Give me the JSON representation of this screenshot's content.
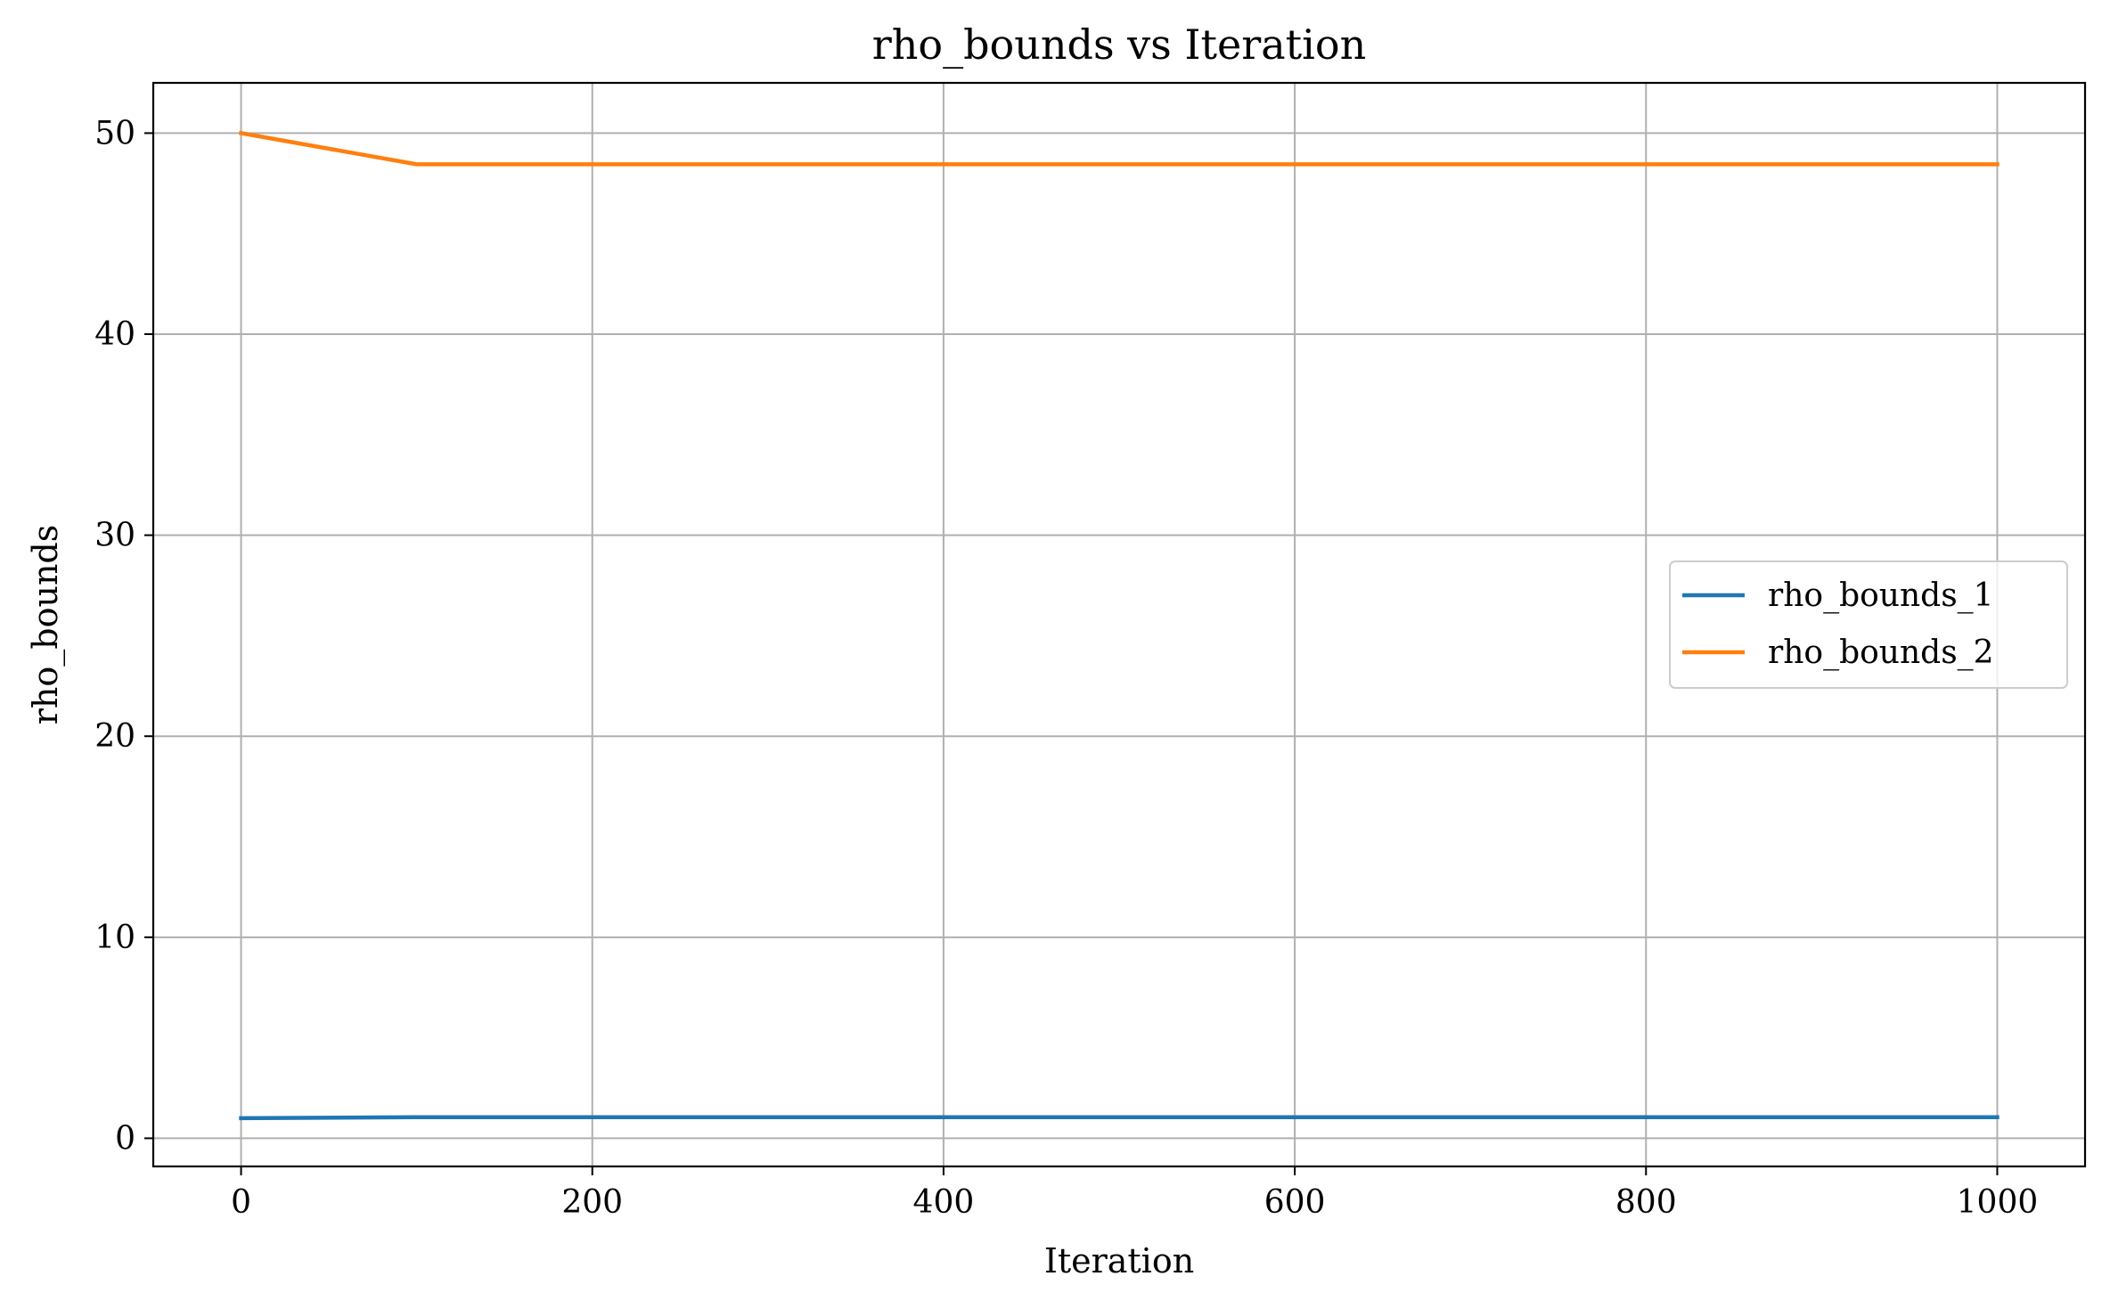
{
  "chart_data": {
    "type": "line",
    "title": "rho_bounds vs Iteration",
    "xlabel": "Iteration",
    "ylabel": "rho_bounds",
    "xlim": [
      -50,
      1050
    ],
    "ylim": [
      -1.4,
      52.5
    ],
    "x_ticks": [
      0,
      200,
      400,
      600,
      800,
      1000
    ],
    "x_tick_labels": [
      "0",
      "200",
      "400",
      "600",
      "800",
      "1000"
    ],
    "y_ticks": [
      0,
      10,
      20,
      30,
      40,
      50
    ],
    "y_tick_labels": [
      "0",
      "10",
      "20",
      "30",
      "40",
      "50"
    ],
    "grid": true,
    "legend_position": "center-right",
    "series": [
      {
        "name": "rho_bounds_1",
        "color": "#1f77b4",
        "x": [
          0,
          100,
          200,
          300,
          400,
          500,
          600,
          700,
          800,
          900,
          1000
        ],
        "y": [
          1.0,
          1.05,
          1.05,
          1.05,
          1.05,
          1.05,
          1.05,
          1.05,
          1.05,
          1.05,
          1.05
        ]
      },
      {
        "name": "rho_bounds_2",
        "color": "#ff7f0e",
        "x": [
          0,
          100,
          200,
          300,
          400,
          500,
          600,
          700,
          800,
          900,
          1000
        ],
        "y": [
          50.0,
          48.45,
          48.45,
          48.45,
          48.45,
          48.45,
          48.45,
          48.45,
          48.45,
          48.45,
          48.45
        ]
      }
    ]
  }
}
